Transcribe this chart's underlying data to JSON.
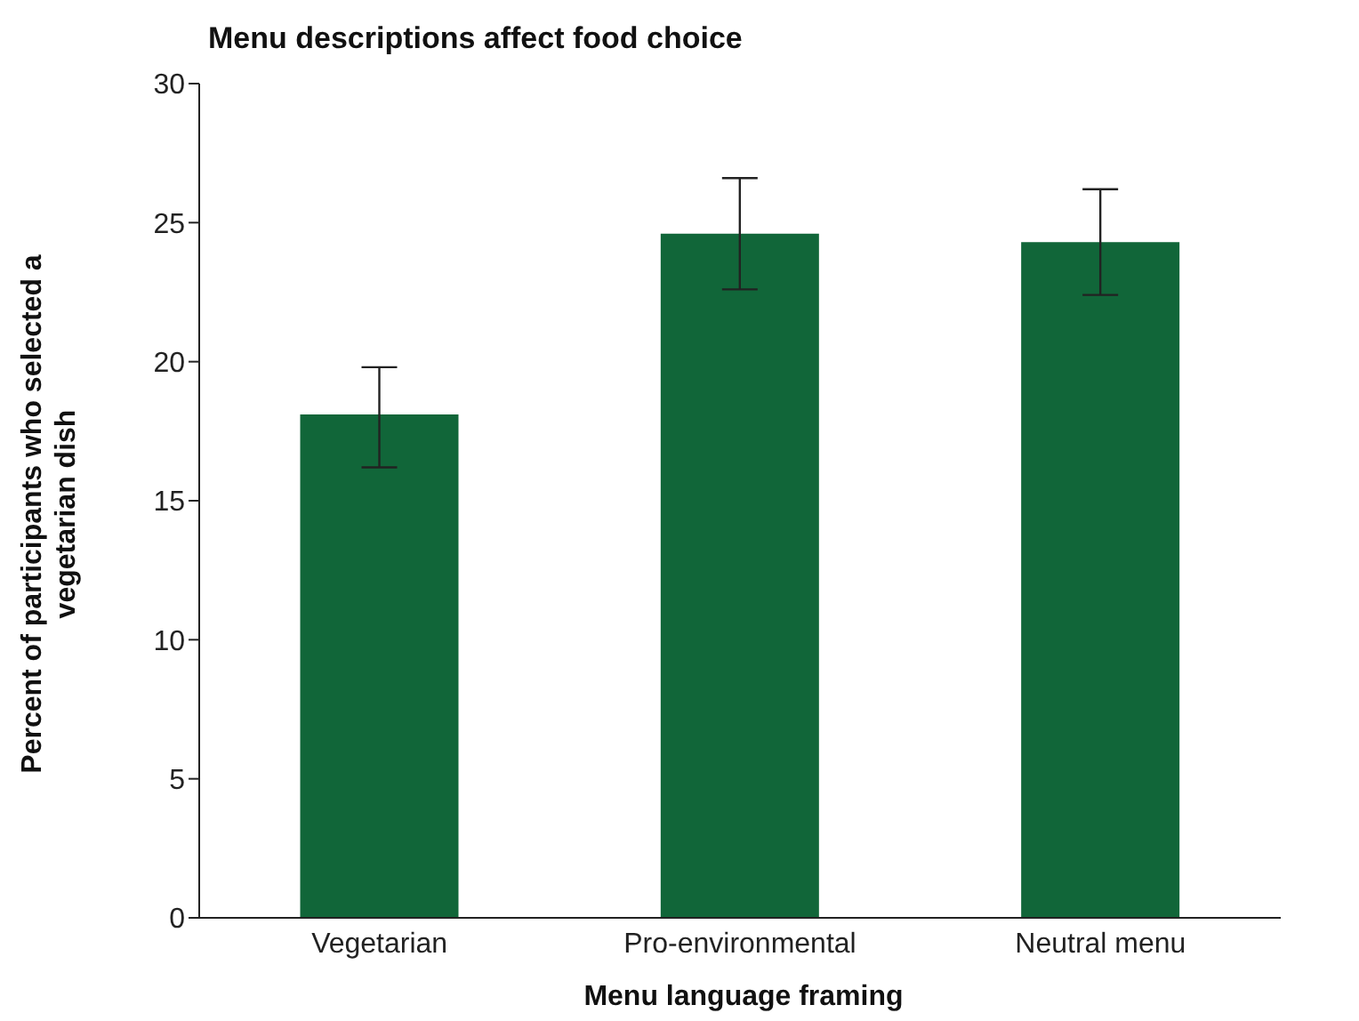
{
  "chart_data": {
    "type": "bar",
    "title": "Menu descriptions affect food choice",
    "xlabel": "Menu language framing",
    "ylabel": "Percent of participants who selected a vegetarian dish",
    "categories": [
      "Vegetarian",
      "Pro-environmental",
      "Neutral menu"
    ],
    "values": [
      18.1,
      24.6,
      24.3
    ],
    "errors": [
      [
        16.2,
        19.8
      ],
      [
        22.6,
        26.6
      ],
      [
        22.4,
        26.2
      ]
    ],
    "color": "#116639",
    "ylim": [
      0,
      30
    ],
    "yticks": [
      0,
      5,
      10,
      15,
      20,
      25,
      30
    ],
    "grid": false
  }
}
